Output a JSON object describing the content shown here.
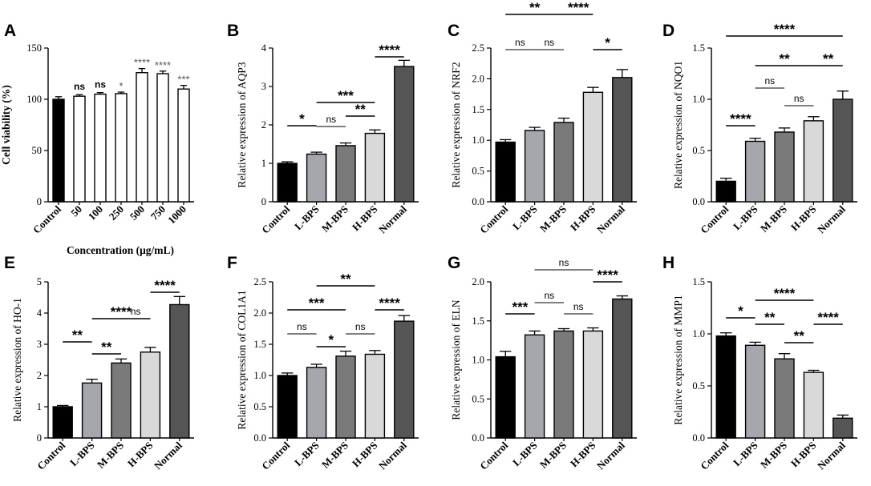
{
  "figure": {
    "colors": {
      "black": "#000000",
      "gray_light": "#a6a6ad",
      "gray_mid": "#7a7a7a",
      "gray_pale": "#d9d9d9",
      "gray_dark": "#555555",
      "white": "#ffffff"
    }
  },
  "chart_data": [
    {
      "panel": "A",
      "type": "bar",
      "title": "",
      "xlabel": "Concentration (μg/mL)",
      "ylabel": "Cell viability (%)",
      "ylim": [
        0,
        150
      ],
      "yticks": [
        0,
        50,
        100,
        150
      ],
      "categories": [
        "Control",
        "50",
        "100",
        "250",
        "500",
        "750",
        "1000"
      ],
      "values": [
        100,
        103,
        105,
        105.5,
        126,
        125,
        110
      ],
      "errors": [
        2.5,
        1.5,
        1.5,
        1.5,
        4,
        2.5,
        3.5
      ],
      "colors": [
        "#000000",
        "#ffffff",
        "#ffffff",
        "#ffffff",
        "#ffffff",
        "#ffffff",
        "#ffffff"
      ],
      "bar_labels": [
        "",
        "ns",
        "ns",
        "*",
        "****",
        "****",
        "***"
      ],
      "grid": false
    },
    {
      "panel": "B",
      "type": "bar",
      "title": "",
      "xlabel": "",
      "ylabel": "Relative expression of AQP3",
      "ylim": [
        0,
        4
      ],
      "yticks": [
        0,
        1,
        2,
        3,
        4
      ],
      "categories": [
        "Control",
        "L-BPS",
        "M-BPS",
        "H-BPS",
        "Normal"
      ],
      "values": [
        1.0,
        1.24,
        1.46,
        1.78,
        3.52
      ],
      "errors": [
        0.04,
        0.05,
        0.07,
        0.09,
        0.16
      ],
      "colors": [
        "#000000",
        "#a6a6ad",
        "#7a7a7a",
        "#d9d9d9",
        "#555555"
      ],
      "comparisons": [
        {
          "from": 0,
          "to": 1,
          "label": "*"
        },
        {
          "from": 1,
          "to": 2,
          "label": "ns"
        },
        {
          "from": 1,
          "to": 3,
          "label": "***"
        },
        {
          "from": 2,
          "to": 3,
          "label": "**"
        },
        {
          "from": 3,
          "to": 4,
          "label": "****"
        }
      ],
      "grid": false
    },
    {
      "panel": "C",
      "type": "bar",
      "title": "",
      "xlabel": "",
      "ylabel": "Relative expression of NRF2",
      "ylim": [
        0,
        2.5
      ],
      "yticks": [
        "0.0",
        "0.5",
        "1.0",
        "1.5",
        "2.0",
        "2.5"
      ],
      "categories": [
        "Control",
        "L-BPS",
        "M-BPS",
        "H-BPS",
        "Normal"
      ],
      "values": [
        0.97,
        1.16,
        1.29,
        1.78,
        2.02
      ],
      "errors": [
        0.04,
        0.05,
        0.07,
        0.08,
        0.13
      ],
      "colors": [
        "#000000",
        "#a6a6ad",
        "#7a7a7a",
        "#d9d9d9",
        "#555555"
      ],
      "comparisons": [
        {
          "from": 0,
          "to": 1,
          "label": "ns"
        },
        {
          "from": 1,
          "to": 2,
          "label": "ns"
        },
        {
          "from": 3,
          "to": 4,
          "label": "*"
        },
        {
          "from": 0,
          "to": 2,
          "label": "**"
        },
        {
          "from": 2,
          "to": 3,
          "label": "****"
        }
      ],
      "grid": false
    },
    {
      "panel": "D",
      "type": "bar",
      "title": "",
      "xlabel": "",
      "ylabel": "Relative expression of NQO1",
      "ylim": [
        0,
        1.5
      ],
      "yticks": [
        "0.0",
        "0.5",
        "1.0",
        "1.5"
      ],
      "categories": [
        "Control",
        "L-BPS",
        "M-BPS",
        "H-BPS",
        "Normal"
      ],
      "values": [
        0.2,
        0.59,
        0.68,
        0.79,
        1.0
      ],
      "errors": [
        0.03,
        0.03,
        0.04,
        0.04,
        0.08
      ],
      "colors": [
        "#000000",
        "#a6a6ad",
        "#7a7a7a",
        "#d9d9d9",
        "#555555"
      ],
      "comparisons": [
        {
          "from": 0,
          "to": 4,
          "label": "****"
        },
        {
          "from": 1,
          "to": 3,
          "label": "**"
        },
        {
          "from": 3,
          "to": 4,
          "label": "**"
        },
        {
          "from": 1,
          "to": 2,
          "label": "ns"
        },
        {
          "from": 2,
          "to": 3,
          "label": "ns"
        },
        {
          "from": 0,
          "to": 1,
          "label": "****"
        }
      ],
      "grid": false
    },
    {
      "panel": "E",
      "type": "bar",
      "title": "",
      "xlabel": "",
      "ylabel": "Relative expression of HO-1",
      "ylim": [
        0,
        5
      ],
      "yticks": [
        0,
        1,
        2,
        3,
        4,
        5
      ],
      "categories": [
        "Control",
        "L-BPS",
        "M-BPS",
        "H-BPS",
        "Normal"
      ],
      "values": [
        1.0,
        1.76,
        2.4,
        2.75,
        4.27
      ],
      "errors": [
        0.04,
        0.12,
        0.13,
        0.15,
        0.26
      ],
      "colors": [
        "#000000",
        "#a6a6ad",
        "#7a7a7a",
        "#d9d9d9",
        "#555555"
      ],
      "comparisons": [
        {
          "from": 0,
          "to": 1,
          "label": "**"
        },
        {
          "from": 1,
          "to": 2,
          "label": "**"
        },
        {
          "from": 1,
          "to": 3,
          "label": "****"
        },
        {
          "from": 2,
          "to": 3,
          "label": "ns"
        },
        {
          "from": 3,
          "to": 4,
          "label": "****"
        }
      ],
      "grid": false
    },
    {
      "panel": "F",
      "type": "bar",
      "title": "",
      "xlabel": "",
      "ylabel": "Relative expression of COL1A1",
      "ylim": [
        0,
        2.5
      ],
      "yticks": [
        "0.0",
        "0.5",
        "1.0",
        "1.5",
        "2.0",
        "2.5"
      ],
      "categories": [
        "Control",
        "L-BPS",
        "M-BPS",
        "H-BPS",
        "Normal"
      ],
      "values": [
        1.0,
        1.13,
        1.31,
        1.34,
        1.87
      ],
      "errors": [
        0.04,
        0.05,
        0.08,
        0.06,
        0.09
      ],
      "colors": [
        "#000000",
        "#a6a6ad",
        "#7a7a7a",
        "#d9d9d9",
        "#555555"
      ],
      "comparisons": [
        {
          "from": 0,
          "to": 1,
          "label": "ns"
        },
        {
          "from": 1,
          "to": 2,
          "label": "*"
        },
        {
          "from": 2,
          "to": 3,
          "label": "ns"
        },
        {
          "from": 0,
          "to": 2,
          "label": "***"
        },
        {
          "from": 1,
          "to": 3,
          "label": "**"
        },
        {
          "from": 3,
          "to": 4,
          "label": "****"
        }
      ],
      "grid": false
    },
    {
      "panel": "G",
      "type": "bar",
      "title": "",
      "xlabel": "",
      "ylabel": "Relative expression of ELN",
      "ylim": [
        0,
        2.0
      ],
      "yticks": [
        "0.0",
        "0.5",
        "1.0",
        "1.5",
        "2.0"
      ],
      "categories": [
        "Control",
        "L-BPS",
        "M-BPS",
        "H-BPS",
        "Normal"
      ],
      "values": [
        1.04,
        1.32,
        1.37,
        1.37,
        1.78
      ],
      "errors": [
        0.07,
        0.05,
        0.03,
        0.04,
        0.04
      ],
      "colors": [
        "#000000",
        "#a6a6ad",
        "#7a7a7a",
        "#d9d9d9",
        "#555555"
      ],
      "comparisons": [
        {
          "from": 0,
          "to": 1,
          "label": "***"
        },
        {
          "from": 1,
          "to": 2,
          "label": "ns"
        },
        {
          "from": 2,
          "to": 3,
          "label": "ns"
        },
        {
          "from": 1,
          "to": 3,
          "label": "ns"
        },
        {
          "from": 3,
          "to": 4,
          "label": "****"
        }
      ],
      "grid": false
    },
    {
      "panel": "H",
      "type": "bar",
      "title": "",
      "xlabel": "",
      "ylabel": "Relative expression of MMP1",
      "ylim": [
        0,
        1.5
      ],
      "yticks": [
        "0.0",
        "0.5",
        "1.0",
        "1.5"
      ],
      "categories": [
        "Control",
        "L-BPS",
        "M-BPS",
        "H-BPS",
        "Normal"
      ],
      "values": [
        0.98,
        0.89,
        0.76,
        0.63,
        0.19
      ],
      "errors": [
        0.03,
        0.03,
        0.05,
        0.02,
        0.03
      ],
      "colors": [
        "#000000",
        "#a6a6ad",
        "#7a7a7a",
        "#d9d9d9",
        "#555555"
      ],
      "comparisons": [
        {
          "from": 0,
          "to": 1,
          "label": "*"
        },
        {
          "from": 1,
          "to": 2,
          "label": "**"
        },
        {
          "from": 1,
          "to": 3,
          "label": "****"
        },
        {
          "from": 2,
          "to": 3,
          "label": "**"
        },
        {
          "from": 3,
          "to": 4,
          "label": "****"
        }
      ],
      "grid": false
    }
  ]
}
